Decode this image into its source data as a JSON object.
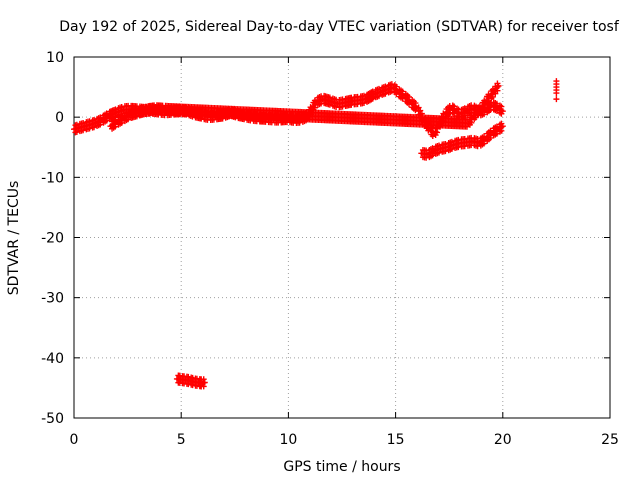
{
  "chart_data": {
    "type": "scatter",
    "title": "Day 192 of 2025, Sidereal Day-to-day VTEC variation (SDTVAR) for receiver tosf",
    "xlabel": "GPS time / hours",
    "ylabel": "SDTVAR / TECUs",
    "xlim": [
      0,
      25
    ],
    "ylim": [
      -50,
      10
    ],
    "x_ticks": [
      0,
      5,
      10,
      15,
      20,
      25
    ],
    "y_ticks": [
      10,
      0,
      -10,
      -20,
      -30,
      -40,
      -50
    ],
    "grid": true,
    "marker": "+",
    "marker_color": "#ff0000",
    "series": [
      {
        "name": "main-band",
        "x": [
          0.0,
          0.2,
          0.5,
          0.8,
          1.0,
          1.3,
          1.6,
          2.0,
          2.3,
          2.6,
          3.0,
          3.3,
          3.6,
          4.0,
          4.3,
          4.6,
          5.0,
          5.3,
          5.6,
          6.0,
          6.3,
          6.6,
          7.0,
          7.3,
          7.6,
          8.0,
          8.3,
          8.6,
          9.0,
          9.3,
          9.6,
          10.0,
          10.3,
          10.6,
          10.9,
          11.1,
          11.3,
          11.6,
          12.0,
          12.3,
          12.6,
          13.0,
          13.3,
          13.6,
          14.0,
          14.3,
          14.6,
          14.9,
          15.1,
          15.4,
          15.7,
          16.0,
          16.3,
          16.6,
          16.8,
          17.0,
          17.3,
          17.6,
          17.8,
          18.0,
          18.3,
          18.6,
          18.9,
          19.2,
          19.5,
          19.8,
          20.0
        ],
        "y": [
          -2.0,
          -1.8,
          -1.5,
          -1.2,
          -1.0,
          -0.5,
          0.2,
          0.8,
          1.2,
          1.3,
          1.2,
          1.1,
          1.2,
          1.0,
          0.9,
          1.0,
          1.1,
          1.0,
          0.6,
          0.3,
          0.1,
          0.2,
          0.4,
          0.8,
          0.5,
          0.2,
          0.0,
          -0.1,
          -0.2,
          -0.3,
          -0.3,
          -0.2,
          -0.4,
          -0.3,
          0.2,
          1.5,
          2.5,
          3.0,
          2.6,
          2.2,
          2.4,
          2.7,
          2.8,
          3.0,
          3.8,
          4.2,
          4.6,
          5.0,
          4.2,
          3.5,
          2.5,
          1.5,
          -0.5,
          -2.0,
          -2.8,
          -1.5,
          0.5,
          1.5,
          1.0,
          0.5,
          1.0,
          1.5,
          0.8,
          1.2,
          2.0,
          1.5,
          1.0
        ]
      },
      {
        "name": "upper-branch",
        "x": [
          1.7,
          2.0,
          2.3,
          2.6,
          3.0,
          3.4,
          3.8,
          4.2,
          18.4,
          18.6,
          18.8,
          19.0,
          19.2,
          19.4,
          19.6,
          19.7,
          19.8
        ],
        "y": [
          -1.5,
          -0.8,
          -0.2,
          0.4,
          0.8,
          1.2,
          1.4,
          1.3,
          -1.0,
          0.0,
          0.8,
          1.5,
          2.5,
          3.5,
          4.2,
          4.8,
          5.2
        ]
      },
      {
        "name": "lower-branch",
        "x": [
          16.2,
          16.5,
          16.8,
          17.1,
          17.4,
          17.7,
          18.0,
          18.3,
          18.6,
          18.9,
          19.2,
          19.5,
          19.8,
          20.0
        ],
        "y": [
          -6.0,
          -6.2,
          -5.6,
          -5.2,
          -5.0,
          -4.6,
          -4.3,
          -4.2,
          -4.0,
          -4.3,
          -3.6,
          -2.6,
          -2.0,
          -1.5
        ]
      },
      {
        "name": "outlier-cluster",
        "x": [
          22.5,
          22.5,
          22.5,
          22.5,
          22.5,
          22.5
        ],
        "y": [
          6.0,
          5.5,
          5.0,
          4.5,
          4.0,
          3.0
        ]
      },
      {
        "name": "low-segment",
        "x": [
          4.8,
          5.0,
          5.2,
          5.4,
          5.6,
          5.8,
          6.0,
          6.1
        ],
        "y": [
          -43.5,
          -43.6,
          -43.7,
          -43.8,
          -44.0,
          -44.1,
          -44.2,
          -44.1
        ]
      }
    ]
  }
}
